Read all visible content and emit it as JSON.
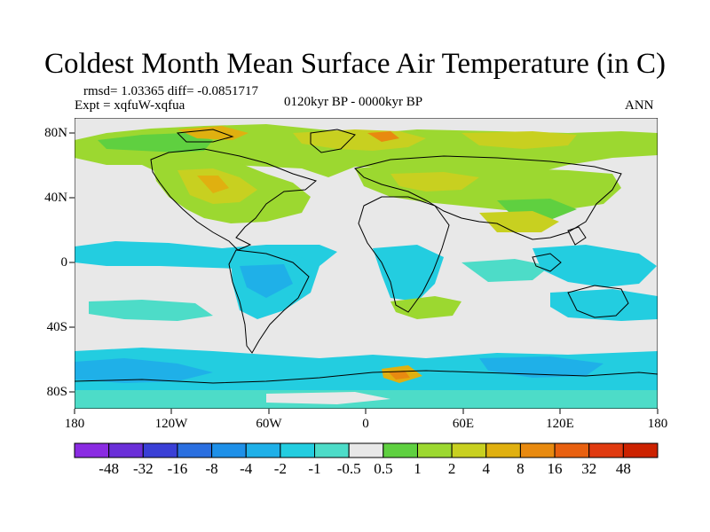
{
  "title": "Coldest Month Mean Surface Air Temperature (in C)",
  "stats": "rmsd= 1.03365 diff= -0.0851717",
  "experiment": "Expt = xqfuW-xqfua",
  "period": "0120kyr BP - 0000kyr BP",
  "season": "ANN",
  "latitude_labels": [
    "80N",
    "40N",
    "0",
    "40S",
    "80S"
  ],
  "longitude_labels": [
    "180",
    "120W",
    "60W",
    "0",
    "60E",
    "120E",
    "180"
  ],
  "colorbar": {
    "labels": [
      "-48",
      "-32",
      "-16",
      "-8",
      "-4",
      "-2",
      "-1",
      "-0.5",
      "0.5",
      "1",
      "2",
      "4",
      "8",
      "16",
      "32",
      "48"
    ],
    "colors": [
      "#8a2be2",
      "#6a2fd8",
      "#3a3fd6",
      "#2a6fe0",
      "#1e90e8",
      "#1fb0e8",
      "#23cde0",
      "#4ddcc8",
      "#e8e8e8",
      "#5fd040",
      "#9cd830",
      "#c8d020",
      "#e0b010",
      "#e88a10",
      "#e86010",
      "#e03a10",
      "#cc2200"
    ]
  },
  "map": {
    "background_color": "#e8e8e8",
    "coast_color": "#000000"
  }
}
